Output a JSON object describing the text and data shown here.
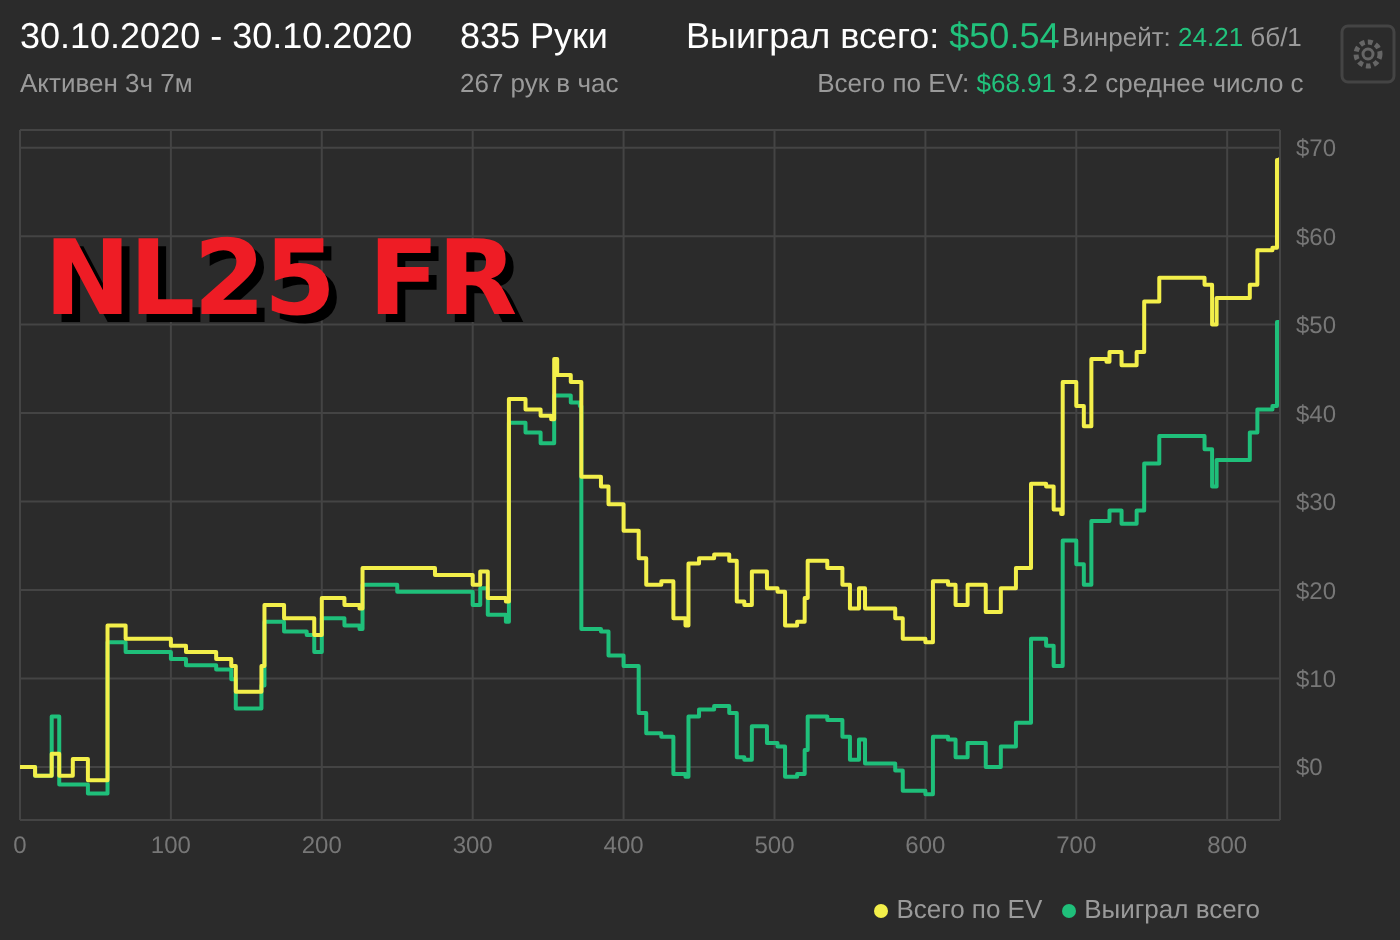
{
  "chart_data": {
    "type": "step",
    "title": "NL25 FR",
    "annotations": [
      "30.10.2020 - 30.10.2020",
      "Активен 3ч 7м",
      "835 Руки",
      "267 рук в час",
      "Выиграл всего: $50.54",
      "Всего по EV: $68.91",
      "Винрейт: 24.21 бб/1",
      "3.2 среднее число с"
    ],
    "x": [
      0,
      10,
      21,
      26,
      35,
      45,
      58,
      70,
      100,
      110,
      130,
      140,
      143,
      155,
      160,
      162,
      175,
      190,
      195,
      200,
      215,
      225,
      227,
      250,
      275,
      300,
      305,
      310,
      322,
      324,
      335,
      345,
      352,
      354,
      356,
      365,
      371,
      372,
      385,
      390,
      400,
      410,
      415,
      425,
      433,
      441,
      443,
      450,
      460,
      470,
      475,
      480,
      485,
      495,
      502,
      507,
      515,
      520,
      522,
      535,
      545,
      550,
      556,
      560,
      580,
      585,
      600,
      605,
      615,
      620,
      628,
      640,
      650,
      660,
      667,
      670,
      680,
      685,
      690,
      691,
      700,
      705,
      710,
      720,
      722,
      730,
      740,
      745,
      755,
      770,
      785,
      790,
      793,
      810,
      815,
      820,
      830,
      833,
      835
    ],
    "series": [
      {
        "name": "Выиграл всего",
        "color": "#1fbf7a",
        "values": [
          0,
          -1,
          5.7,
          -2,
          -2,
          -3,
          14.1,
          13,
          12.2,
          11.5,
          11,
          9.9,
          6.6,
          6.6,
          9.2,
          16.4,
          15.3,
          14.9,
          13,
          16.8,
          16,
          15.6,
          20.6,
          19.8,
          19.8,
          18.3,
          20.2,
          17.2,
          16.4,
          38.9,
          37.8,
          36.6,
          36.6,
          42,
          42,
          41.2,
          40.8,
          15.6,
          15.3,
          12.6,
          11.4,
          6.1,
          3.8,
          3.4,
          -0.8,
          -1.1,
          5.7,
          6.5,
          6.9,
          6.1,
          1.1,
          0.8,
          4.6,
          2.7,
          2.3,
          -1.1,
          -0.8,
          1.9,
          5.7,
          5.3,
          3.4,
          0.8,
          3.1,
          0.4,
          -0.4,
          -2.7,
          -3.1,
          3.4,
          3.1,
          1.1,
          2.7,
          0,
          2.3,
          5,
          5,
          14.5,
          13.7,
          11.4,
          11.4,
          25.6,
          22.9,
          20.6,
          27.8,
          27.8,
          29,
          27.5,
          29,
          34.3,
          37.4,
          37.4,
          35.9,
          31.7,
          34.7,
          34.7,
          37.8,
          40.4,
          40.8,
          50.3,
          50.5
        ]
      },
      {
        "name": "Всего по EV",
        "color": "#f3ef4a",
        "values": [
          0,
          -1,
          1.5,
          -1,
          0.9,
          -1.5,
          16,
          14.5,
          13.7,
          13,
          12.2,
          11.4,
          8.5,
          8.5,
          11.4,
          18.3,
          16.8,
          16.8,
          14.9,
          19.1,
          18.3,
          17.9,
          22.5,
          22.5,
          21.7,
          20.6,
          22.1,
          19.1,
          18.7,
          41.6,
          40.4,
          39.7,
          39.3,
          46.1,
          44.3,
          43.5,
          43.5,
          32.8,
          31.7,
          29.7,
          26.7,
          23.6,
          20.6,
          21,
          16.8,
          16,
          23,
          23.6,
          24,
          23.3,
          18.7,
          18.3,
          22.1,
          20.2,
          19.8,
          16,
          16.4,
          19.1,
          23.3,
          22.5,
          20.6,
          17.9,
          20.2,
          17.9,
          16.8,
          14.5,
          14.1,
          21,
          20.6,
          18.3,
          20.6,
          17.5,
          20.2,
          22.5,
          22.5,
          32,
          31.7,
          29.1,
          28.6,
          43.5,
          40.8,
          38.5,
          46.1,
          45.8,
          46.9,
          45.4,
          46.9,
          52.6,
          55.3,
          55.3,
          54.5,
          50,
          53,
          53,
          54.5,
          58.4,
          58.7,
          68.6,
          68.9
        ]
      }
    ],
    "xlim": [
      0,
      835
    ],
    "xticks": [
      0,
      100,
      200,
      300,
      400,
      500,
      600,
      700,
      800
    ],
    "ylim": [
      -6,
      72
    ],
    "yticks": [
      {
        "value": 0,
        "label": "$0"
      },
      {
        "value": 10,
        "label": "$10"
      },
      {
        "value": 20,
        "label": "$20"
      },
      {
        "value": 30,
        "label": "$30"
      },
      {
        "value": 40,
        "label": "$40"
      },
      {
        "value": 50,
        "label": "$50"
      },
      {
        "value": 60,
        "label": "$60"
      },
      {
        "value": 70,
        "label": "$70"
      }
    ],
    "grid": true,
    "legend": "bottom right",
    "marker": "none",
    "line_style": "solid"
  }
}
